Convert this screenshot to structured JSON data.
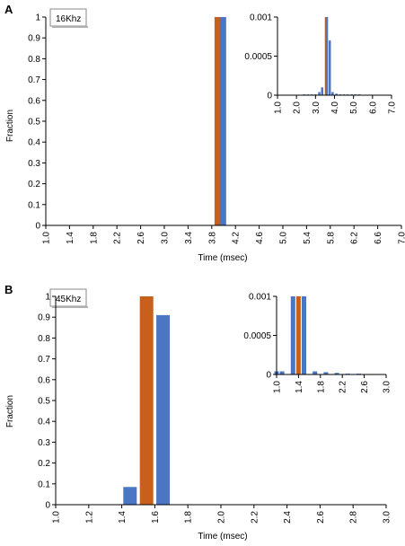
{
  "chart_data": [
    {
      "panel": "A",
      "type": "bar",
      "label": "16Khz",
      "xlabel": "Time (msec)",
      "ylabel": "Fraction",
      "ylim": [
        0,
        1
      ],
      "yticks": [
        "0",
        "0.1",
        "0.2",
        "0.3",
        "0.4",
        "0.5",
        "0.6",
        "0.7",
        "0.8",
        "0.9",
        "1"
      ],
      "xticks": [
        "1.0",
        "1.4",
        "1.8",
        "2.2",
        "2.6",
        "3.0",
        "3.4",
        "3.8",
        "4.2",
        "4.6",
        "5.0",
        "5.4",
        "5.8",
        "6.2",
        "6.6",
        "7.0"
      ],
      "colors": [
        "#c8601c",
        "#4a76c4"
      ],
      "series": [
        {
          "x": [
            3.9
          ],
          "values": [
            1.0
          ]
        },
        {
          "x": [
            3.99
          ],
          "values": [
            1.0
          ]
        }
      ],
      "inset": {
        "ylim": [
          0,
          0.001
        ],
        "yticks": [
          "0",
          "0.0005",
          "0.001"
        ],
        "xticks": [
          "1.0",
          "2.0",
          "3.0",
          "4.0",
          "5.0",
          "6.0",
          "7.0"
        ],
        "series": [
          {
            "x": [
              3.55
            ],
            "values": [
              0.001
            ]
          },
          {
            "x": [
              2.4,
              2.6,
              2.8,
              3.0,
              3.2,
              3.35,
              3.6,
              3.75,
              3.9,
              4.1,
              4.3,
              4.5,
              4.7,
              4.9,
              5.1,
              5.3
            ],
            "values": [
              1e-05,
              1e-05,
              1e-05,
              1e-05,
              4e-05,
              0.0001,
              0.001,
              0.0007,
              4e-05,
              2e-05,
              1e-05,
              1e-05,
              1e-05,
              1e-05,
              1e-05,
              1e-05
            ]
          }
        ]
      }
    },
    {
      "panel": "B",
      "type": "bar",
      "label": "45Khz",
      "xlabel": "Time (msec)",
      "ylabel": "Fraction",
      "ylim": [
        0,
        1
      ],
      "yticks": [
        "0",
        "0.1",
        "0.2",
        "0.3",
        "0.4",
        "0.5",
        "0.6",
        "0.7",
        "0.8",
        "0.9",
        "1"
      ],
      "xticks": [
        "1.0",
        "1.2",
        "1.4",
        "1.6",
        "1.8",
        "2.0",
        "2.2",
        "2.4",
        "2.6",
        "2.8",
        "3.0"
      ],
      "colors": [
        "#c8601c",
        "#4a76c4"
      ],
      "series": [
        {
          "x": [
            1.55
          ],
          "values": [
            1.0
          ]
        },
        {
          "x": [
            1.45,
            1.65
          ],
          "values": [
            0.085,
            0.91
          ]
        }
      ],
      "inset": {
        "ylim": [
          0,
          0.001
        ],
        "yticks": [
          "0",
          "0.0005",
          "0.001"
        ],
        "xticks": [
          "1.0",
          "1.4",
          "1.8",
          "2.2",
          "2.6",
          "3.0"
        ],
        "series": [
          {
            "x": [
              1.4
            ],
            "values": [
              0.001
            ]
          },
          {
            "x": [
              1.0,
              1.1,
              1.3,
              1.5,
              1.7,
              1.9,
              2.1,
              2.3,
              2.5,
              2.7
            ],
            "values": [
              4e-05,
              4e-05,
              0.001,
              0.001,
              4e-05,
              3e-05,
              2e-05,
              1e-05,
              1e-05,
              5e-06
            ]
          }
        ]
      }
    }
  ],
  "panel_letters": [
    "A",
    "B"
  ]
}
